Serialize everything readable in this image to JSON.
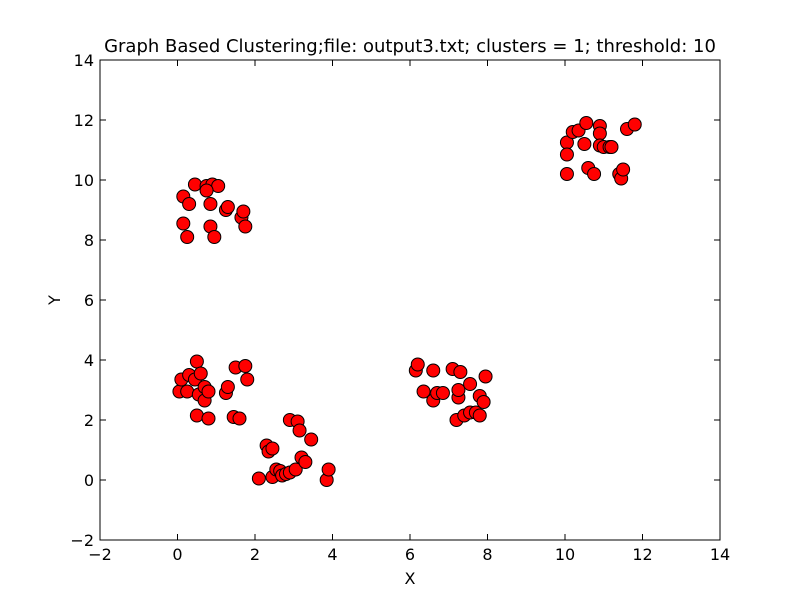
{
  "chart_data": {
    "type": "scatter",
    "title": "Graph Based Clustering;file: output3.txt; clusters = 1; threshold: 10",
    "xlabel": "X",
    "ylabel": "Y",
    "xlim": [
      -2,
      14
    ],
    "ylim": [
      -2,
      14
    ],
    "xticks": [
      -2,
      0,
      2,
      4,
      6,
      8,
      10,
      12,
      14
    ],
    "yticks": [
      -2,
      0,
      2,
      4,
      6,
      8,
      10,
      12,
      14
    ],
    "grid": false,
    "marker_color": "#ff0000",
    "marker_edge_color": "#000000",
    "series": [
      {
        "points": [
          [
            0.15,
            9.45
          ],
          [
            0.45,
            9.85
          ],
          [
            0.75,
            9.8
          ],
          [
            0.9,
            9.85
          ],
          [
            1.05,
            9.8
          ],
          [
            0.75,
            9.65
          ],
          [
            0.3,
            9.2
          ],
          [
            0.85,
            9.2
          ],
          [
            1.25,
            9.0
          ],
          [
            1.3,
            9.1
          ],
          [
            1.65,
            8.75
          ],
          [
            1.7,
            8.95
          ],
          [
            1.75,
            8.45
          ],
          [
            0.15,
            8.55
          ],
          [
            0.25,
            8.1
          ],
          [
            0.85,
            8.45
          ],
          [
            0.95,
            8.1
          ],
          [
            10.05,
            11.25
          ],
          [
            10.05,
            10.85
          ],
          [
            10.05,
            10.2
          ],
          [
            10.2,
            11.6
          ],
          [
            10.35,
            11.65
          ],
          [
            10.5,
            11.2
          ],
          [
            10.55,
            11.9
          ],
          [
            10.6,
            10.4
          ],
          [
            10.75,
            10.2
          ],
          [
            10.9,
            11.8
          ],
          [
            10.9,
            11.55
          ],
          [
            10.9,
            11.15
          ],
          [
            11.0,
            11.1
          ],
          [
            11.15,
            11.1
          ],
          [
            11.2,
            11.1
          ],
          [
            11.4,
            10.2
          ],
          [
            11.45,
            10.05
          ],
          [
            11.5,
            10.35
          ],
          [
            11.6,
            11.7
          ],
          [
            11.8,
            11.85
          ],
          [
            0.05,
            2.95
          ],
          [
            0.1,
            3.35
          ],
          [
            0.25,
            2.95
          ],
          [
            0.3,
            3.5
          ],
          [
            0.45,
            3.35
          ],
          [
            0.5,
            3.95
          ],
          [
            0.55,
            2.85
          ],
          [
            0.6,
            3.55
          ],
          [
            0.7,
            3.1
          ],
          [
            0.7,
            2.65
          ],
          [
            0.8,
            2.95
          ],
          [
            0.5,
            2.15
          ],
          [
            0.8,
            2.05
          ],
          [
            1.25,
            2.9
          ],
          [
            1.3,
            3.1
          ],
          [
            1.5,
            3.75
          ],
          [
            1.75,
            3.8
          ],
          [
            1.8,
            3.35
          ],
          [
            1.45,
            2.1
          ],
          [
            1.6,
            2.05
          ],
          [
            2.1,
            0.05
          ],
          [
            2.3,
            1.15
          ],
          [
            2.35,
            0.95
          ],
          [
            2.45,
            1.05
          ],
          [
            2.45,
            0.1
          ],
          [
            2.55,
            0.35
          ],
          [
            2.65,
            0.3
          ],
          [
            2.7,
            0.15
          ],
          [
            2.8,
            0.2
          ],
          [
            2.9,
            0.25
          ],
          [
            2.9,
            2.0
          ],
          [
            3.05,
            0.35
          ],
          [
            3.1,
            1.95
          ],
          [
            3.15,
            1.65
          ],
          [
            3.2,
            0.75
          ],
          [
            3.3,
            0.6
          ],
          [
            3.45,
            1.35
          ],
          [
            3.85,
            0.0
          ],
          [
            3.9,
            0.35
          ],
          [
            6.15,
            3.65
          ],
          [
            6.2,
            3.85
          ],
          [
            6.35,
            2.95
          ],
          [
            6.6,
            3.65
          ],
          [
            6.6,
            2.65
          ],
          [
            6.7,
            2.9
          ],
          [
            6.85,
            2.9
          ],
          [
            7.1,
            3.7
          ],
          [
            7.2,
            2.0
          ],
          [
            7.25,
            2.75
          ],
          [
            7.25,
            3.0
          ],
          [
            7.3,
            3.6
          ],
          [
            7.4,
            2.15
          ],
          [
            7.55,
            3.2
          ],
          [
            7.55,
            2.25
          ],
          [
            7.7,
            2.25
          ],
          [
            7.8,
            2.15
          ],
          [
            7.8,
            2.8
          ],
          [
            7.9,
            2.6
          ],
          [
            7.95,
            3.45
          ]
        ]
      }
    ]
  }
}
